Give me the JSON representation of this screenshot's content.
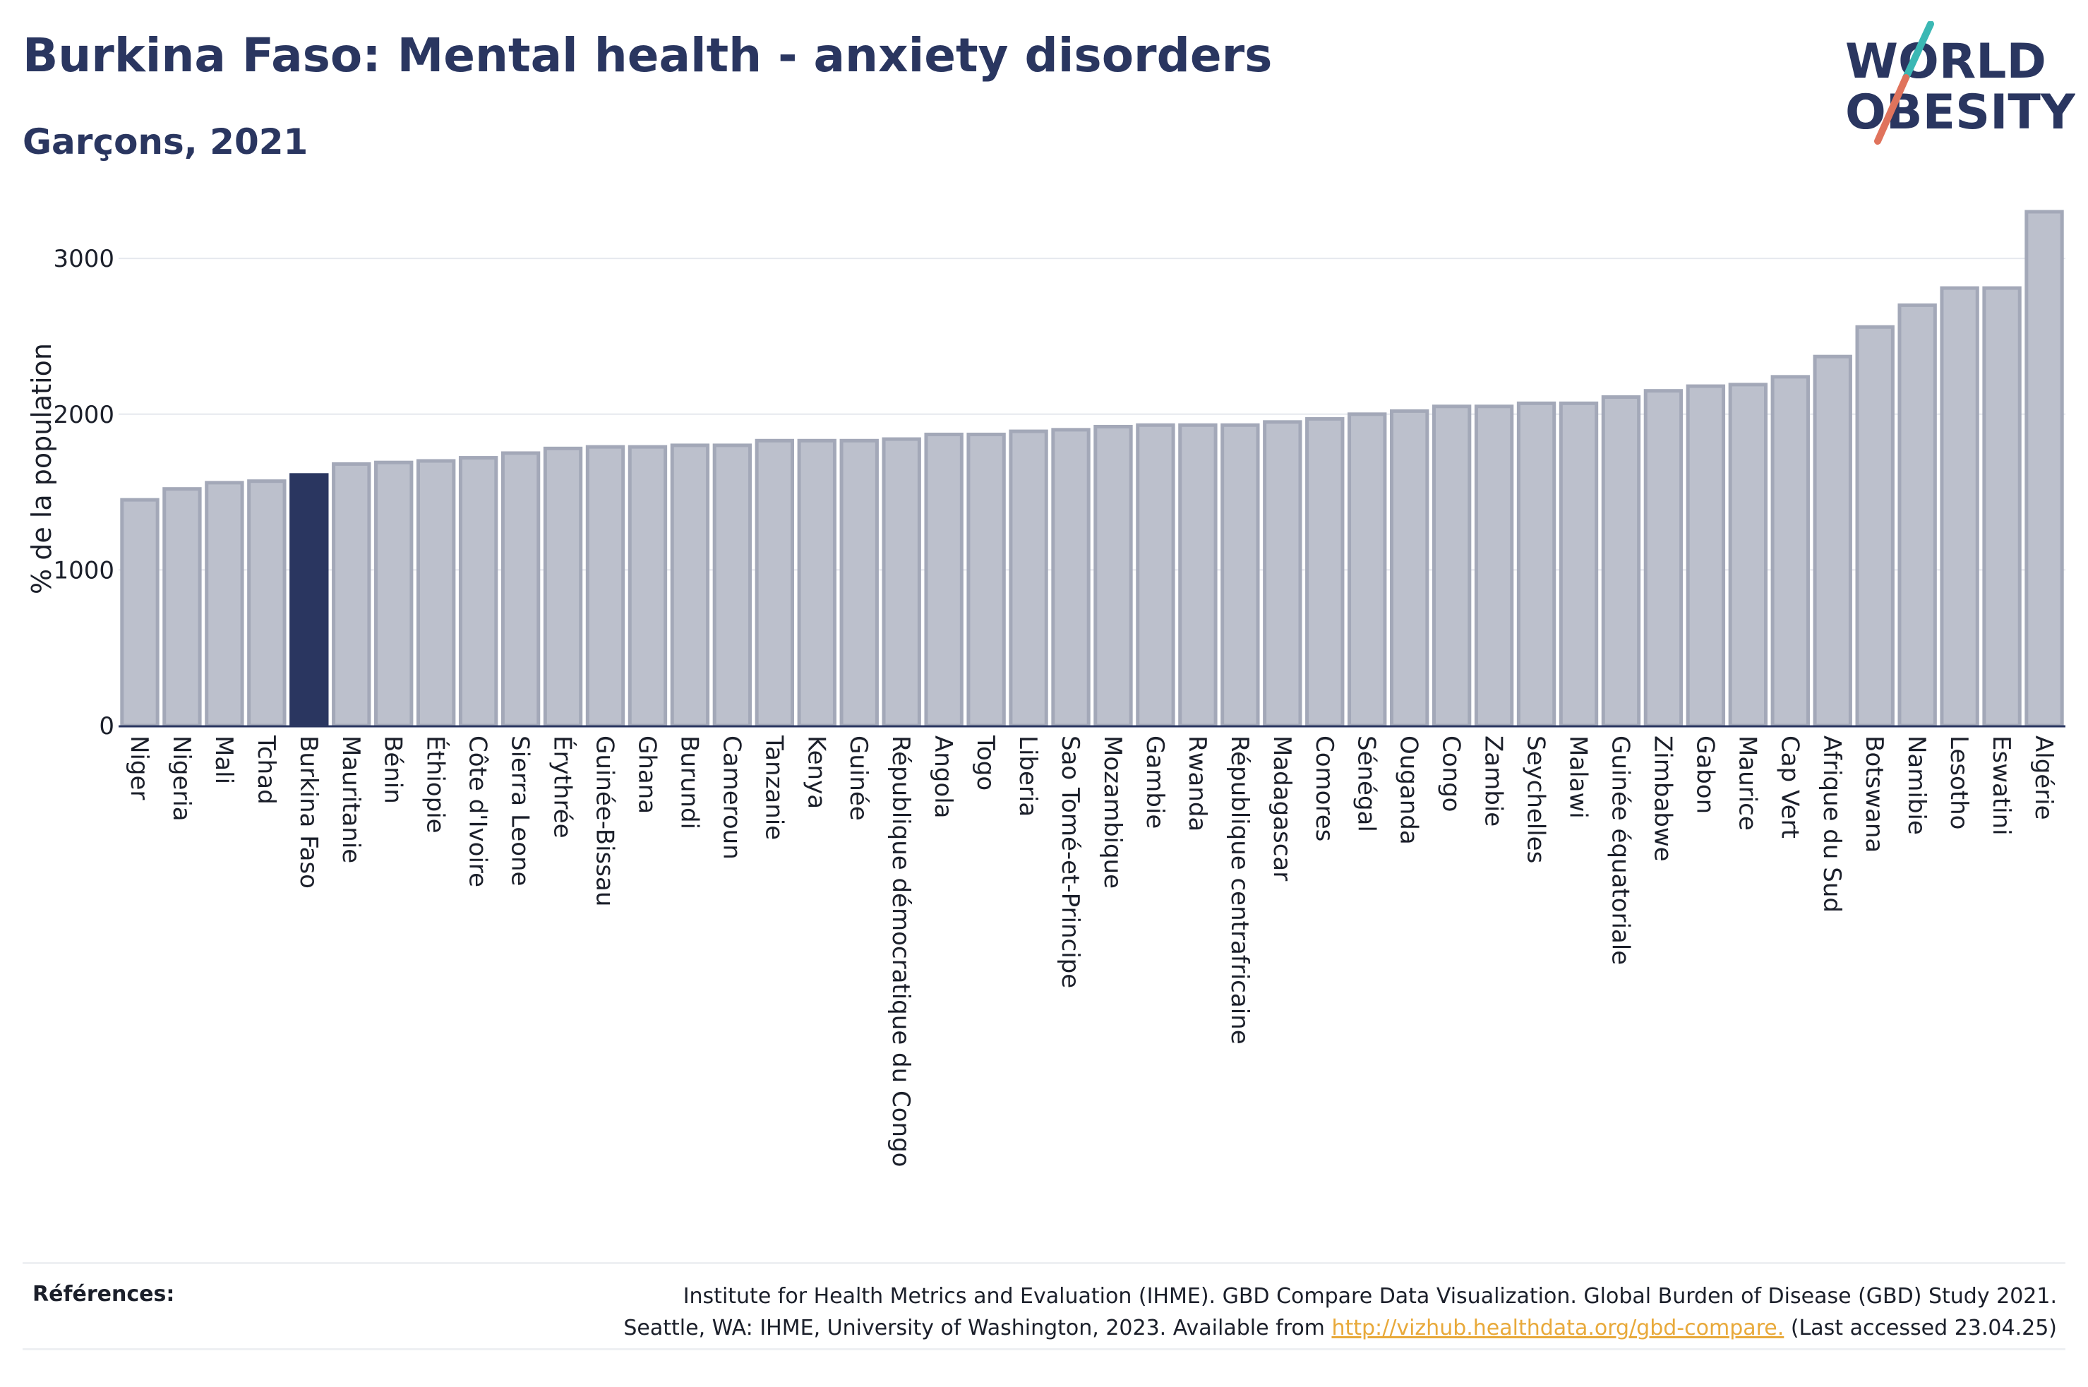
{
  "header": {
    "title": "Burkina Faso: Mental health - anxiety disorders",
    "subtitle": "Garçons, 2021"
  },
  "logo": {
    "line1": "WORLD",
    "line2": "OBESITY",
    "text_color": "#2a3660",
    "slash_colors": [
      "#3bb8b4",
      "#e0735c"
    ]
  },
  "colors": {
    "bar_default": "#bcc0cc",
    "bar_default_stroke": "#a3a8b8",
    "bar_highlight": "#2a3660",
    "grid": "#e6e8ee",
    "axis": "#2a3660"
  },
  "chart_data": {
    "type": "bar",
    "title": "Burkina Faso: Mental health - anxiety disorders",
    "subtitle": "Garçons, 2021",
    "ylabel": "% de la population",
    "xlabel": "",
    "ylim": [
      0,
      3300
    ],
    "yticks": [
      0,
      1000,
      2000,
      3000
    ],
    "grid": true,
    "highlight": "Burkina Faso",
    "categories": [
      "Niger",
      "Nigeria",
      "Mali",
      "Tchad",
      "Burkina Faso",
      "Mauritanie",
      "Bénin",
      "Éthiopie",
      "Côte d'Ivoire",
      "Sierra Leone",
      "Érythrée",
      "Guinée-Bissau",
      "Ghana",
      "Burundi",
      "Cameroun",
      "Tanzanie",
      "Kenya",
      "Guinée",
      "République démocratique du Congo",
      "Angola",
      "Togo",
      "Liberia",
      "Sao Tomé-et-Principe",
      "Mozambique",
      "Gambie",
      "Rwanda",
      "République centrafricaine",
      "Madagascar",
      "Comores",
      "Sénégal",
      "Ouganda",
      "Congo",
      "Zambie",
      "Seychelles",
      "Malawi",
      "Guinée équatoriale",
      "Zimbabwe",
      "Gabon",
      "Maurice",
      "Cap Vert",
      "Afrique du Sud",
      "Botswana",
      "Namibie",
      "Lesotho",
      "Eswatini",
      "Algérie"
    ],
    "values": [
      1450,
      1520,
      1560,
      1570,
      1610,
      1680,
      1690,
      1700,
      1720,
      1750,
      1780,
      1790,
      1790,
      1800,
      1800,
      1830,
      1830,
      1830,
      1840,
      1870,
      1870,
      1890,
      1900,
      1920,
      1930,
      1930,
      1930,
      1950,
      1970,
      2000,
      2020,
      2050,
      2050,
      2070,
      2070,
      2110,
      2150,
      2180,
      2190,
      2240,
      2370,
      2560,
      2700,
      2810,
      2810,
      3300
    ]
  },
  "footer": {
    "references_label": "Références:",
    "line1": "Institute for Health Metrics and Evaluation (IHME). GBD Compare Data Visualization. Global Burden of Disease (GBD) Study 2021.",
    "line2_pre": "Seattle, WA: IHME, University of Washington, 2023. Available from ",
    "link": "http://vizhub.healthdata.org/gbd-compare.",
    "line2_post": " (Last accessed 23.04.25)"
  }
}
